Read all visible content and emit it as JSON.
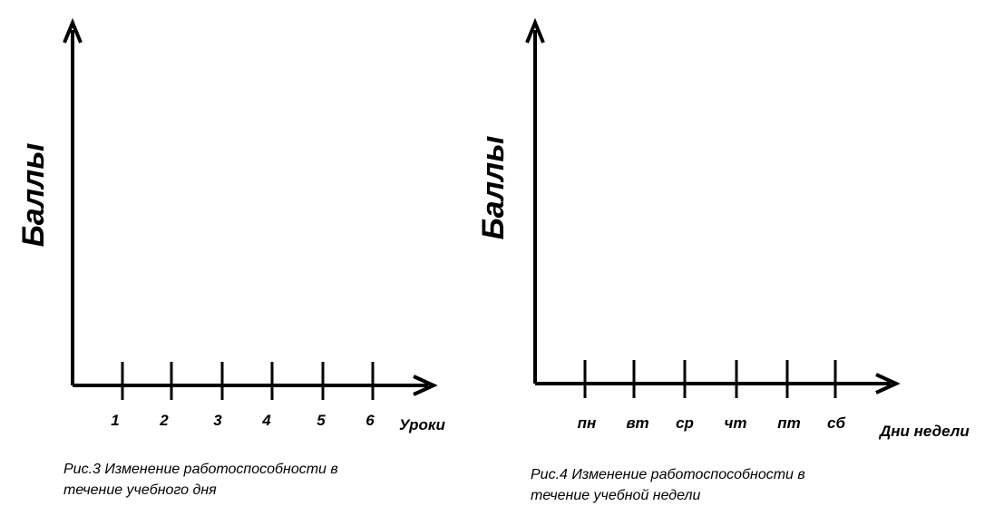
{
  "figures": [
    {
      "y_label": "Баллы",
      "x_label": "Уроки",
      "ticks": [
        "1",
        "2",
        "3",
        "4",
        "5",
        "6"
      ],
      "caption": [
        "Рис.3 Изменение работоспособности в",
        "течение учебного дня"
      ]
    },
    {
      "y_label": "Баллы",
      "x_label": "Дни недели",
      "ticks": [
        "пн",
        "вт",
        "ср",
        "чт",
        "пт",
        "сб"
      ],
      "caption": [
        "Рис.4 Изменение работоспособности в",
        "течение учебной недели"
      ]
    }
  ]
}
